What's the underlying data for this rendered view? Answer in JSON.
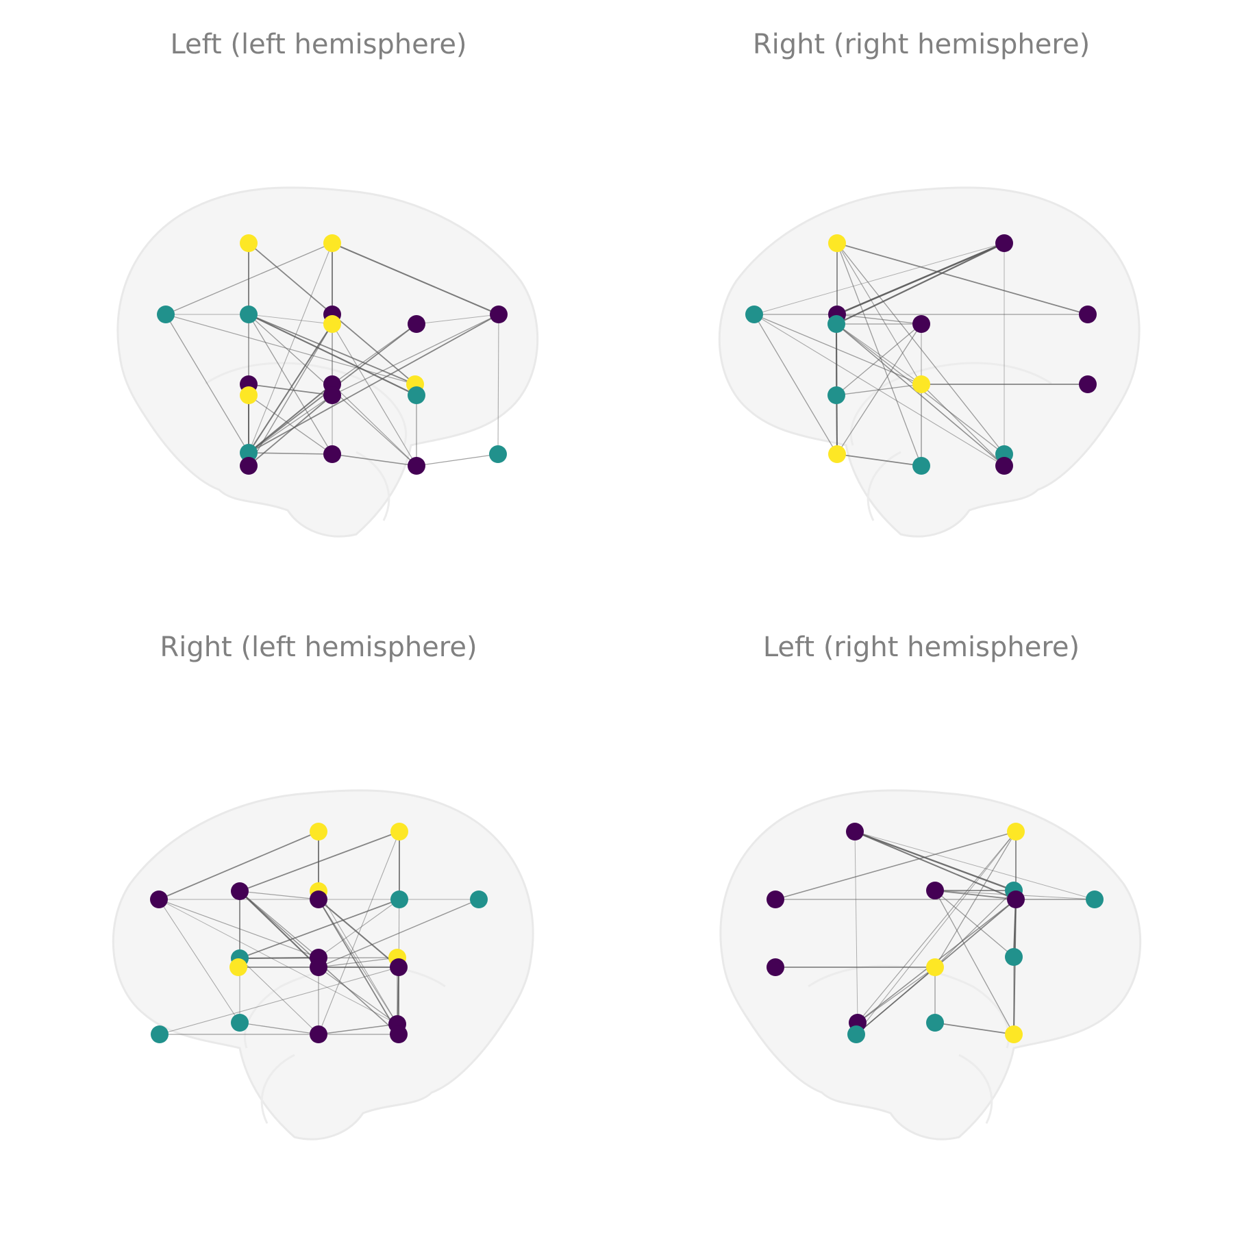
{
  "colors": {
    "purple": "#440154",
    "teal": "#21918c",
    "yellow": "#fde725",
    "edge": "#555555",
    "title": "#808080"
  },
  "panels": [
    {
      "title": "Left (left hemisphere)",
      "view": "left",
      "nodes": [
        {
          "c": "yellow"
        },
        {
          "c": "yellow"
        },
        {
          "c": "teal"
        },
        {
          "c": "teal"
        },
        {
          "c": "purple"
        },
        {
          "c": "yellow"
        },
        {
          "c": "purple"
        },
        {
          "c": "purple"
        },
        {
          "c": "purple"
        },
        {
          "c": "yellow"
        },
        {
          "c": "purple"
        },
        {
          "c": "purple"
        },
        {
          "c": "yellow"
        },
        {
          "c": "teal"
        },
        {
          "c": "teal"
        },
        {
          "c": "purple"
        },
        {
          "c": "purple"
        },
        {
          "c": "purple"
        },
        {
          "c": "teal"
        }
      ],
      "edges": [
        [
          0,
          3,
          1
        ],
        [
          0,
          12,
          1
        ],
        [
          0,
          14,
          0.4
        ],
        [
          1,
          4,
          1
        ],
        [
          1,
          7,
          1.2
        ],
        [
          1,
          14,
          0.4
        ],
        [
          1,
          2,
          0.6
        ],
        [
          1,
          10,
          0.5
        ],
        [
          2,
          3,
          0.3
        ],
        [
          2,
          14,
          0.6
        ],
        [
          3,
          13,
          1.3
        ],
        [
          3,
          12,
          1
        ],
        [
          3,
          15,
          0.6
        ],
        [
          3,
          17,
          0.6
        ],
        [
          3,
          9,
          0.6
        ],
        [
          3,
          5,
          0.3
        ],
        [
          4,
          5,
          1
        ],
        [
          5,
          14,
          1.2
        ],
        [
          5,
          16,
          0.7
        ],
        [
          5,
          17,
          0.5
        ],
        [
          6,
          14,
          1
        ],
        [
          6,
          10,
          0.6
        ],
        [
          6,
          7,
          0.3
        ],
        [
          7,
          18,
          0.4
        ],
        [
          7,
          14,
          1
        ],
        [
          7,
          11,
          0.6
        ],
        [
          8,
          9,
          1
        ],
        [
          8,
          14,
          1
        ],
        [
          8,
          11,
          1
        ],
        [
          9,
          14,
          1
        ],
        [
          9,
          15,
          0.6
        ],
        [
          10,
          14,
          1.2
        ],
        [
          10,
          17,
          0.5
        ],
        [
          11,
          16,
          1
        ],
        [
          11,
          14,
          0.6
        ],
        [
          12,
          13,
          0.5
        ],
        [
          13,
          17,
          0.6
        ],
        [
          14,
          15,
          0.8
        ],
        [
          15,
          17,
          0.8
        ],
        [
          17,
          18,
          0.6
        ],
        [
          4,
          15,
          0.4
        ],
        [
          2,
          12,
          0.5
        ]
      ]
    },
    {
      "title": "Right (right hemisphere)",
      "view": "right",
      "nodes": [
        {
          "c": "yellow"
        },
        {
          "c": "purple"
        },
        {
          "c": "teal"
        },
        {
          "c": "purple"
        },
        {
          "c": "teal"
        },
        {
          "c": "purple"
        },
        {
          "c": "purple"
        },
        {
          "c": "teal"
        },
        {
          "c": "yellow"
        },
        {
          "c": "purple"
        },
        {
          "c": "yellow"
        },
        {
          "c": "teal"
        },
        {
          "c": "teal"
        },
        {
          "c": "purple"
        }
      ],
      "edges": [
        [
          0,
          3,
          1
        ],
        [
          0,
          6,
          1
        ],
        [
          0,
          11,
          0.6
        ],
        [
          0,
          12,
          0.6
        ],
        [
          0,
          8,
          0.5
        ],
        [
          1,
          3,
          1.6
        ],
        [
          1,
          4,
          1.4
        ],
        [
          1,
          12,
          0.3
        ],
        [
          1,
          2,
          0.3
        ],
        [
          2,
          6,
          0.6
        ],
        [
          2,
          8,
          0.6
        ],
        [
          2,
          10,
          0.6
        ],
        [
          2,
          13,
          0.4
        ],
        [
          3,
          4,
          1
        ],
        [
          3,
          5,
          0.6
        ],
        [
          4,
          7,
          1
        ],
        [
          4,
          10,
          1.2
        ],
        [
          4,
          13,
          0.8
        ],
        [
          4,
          12,
          0.6
        ],
        [
          4,
          5,
          0.6
        ],
        [
          5,
          7,
          0.6
        ],
        [
          5,
          10,
          0.6
        ],
        [
          5,
          11,
          0.4
        ],
        [
          7,
          8,
          0.6
        ],
        [
          7,
          10,
          0.8
        ],
        [
          8,
          9,
          1
        ],
        [
          8,
          11,
          0.4
        ],
        [
          8,
          13,
          0.6
        ],
        [
          10,
          11,
          1
        ],
        [
          4,
          8,
          0.5
        ]
      ]
    },
    {
      "title": "Right (left hemisphere)",
      "view": "right",
      "nodes": [
        {
          "c": "yellow"
        },
        {
          "c": "yellow"
        },
        {
          "c": "purple"
        },
        {
          "c": "purple"
        },
        {
          "c": "yellow"
        },
        {
          "c": "purple"
        },
        {
          "c": "teal"
        },
        {
          "c": "teal"
        },
        {
          "c": "teal"
        },
        {
          "c": "purple"
        },
        {
          "c": "yellow"
        },
        {
          "c": "yellow"
        },
        {
          "c": "purple"
        },
        {
          "c": "purple"
        },
        {
          "c": "teal"
        },
        {
          "c": "purple"
        },
        {
          "c": "purple"
        },
        {
          "c": "purple"
        },
        {
          "c": "teal"
        }
      ],
      "edges": [
        [
          0,
          2,
          1
        ],
        [
          0,
          4,
          1
        ],
        [
          0,
          5,
          0.6
        ],
        [
          1,
          3,
          1
        ],
        [
          1,
          6,
          1
        ],
        [
          1,
          15,
          0.4
        ],
        [
          1,
          17,
          0.4
        ],
        [
          2,
          7,
          0.3
        ],
        [
          2,
          9,
          0.5
        ],
        [
          2,
          14,
          0.4
        ],
        [
          3,
          5,
          0.5
        ],
        [
          3,
          8,
          1
        ],
        [
          3,
          12,
          1.3
        ],
        [
          3,
          17,
          0.8
        ],
        [
          3,
          9,
          0.6
        ],
        [
          4,
          5,
          1
        ],
        [
          5,
          13,
          1.2
        ],
        [
          5,
          17,
          1
        ],
        [
          5,
          16,
          0.5
        ],
        [
          6,
          8,
          1
        ],
        [
          6,
          9,
          0.4
        ],
        [
          7,
          12,
          0.7
        ],
        [
          8,
          9,
          1.2
        ],
        [
          8,
          11,
          0.6
        ],
        [
          8,
          14,
          0.4
        ],
        [
          8,
          15,
          0.4
        ],
        [
          9,
          15,
          0.5
        ],
        [
          10,
          12,
          0.8
        ],
        [
          11,
          12,
          0.6
        ],
        [
          11,
          16,
          0.6
        ],
        [
          12,
          13,
          1
        ],
        [
          12,
          16,
          0.6
        ],
        [
          13,
          17,
          1
        ],
        [
          13,
          16,
          0.8
        ],
        [
          14,
          15,
          0.6
        ],
        [
          15,
          16,
          0.8
        ],
        [
          16,
          17,
          0.6
        ],
        [
          17,
          18,
          0.6
        ],
        [
          13,
          18,
          0.4
        ],
        [
          4,
          16,
          0.4
        ],
        [
          2,
          16,
          0.3
        ],
        [
          10,
          13,
          0.6
        ]
      ]
    },
    {
      "title": "Left (right hemisphere)",
      "view": "left",
      "nodes": [
        {
          "c": "purple"
        },
        {
          "c": "yellow"
        },
        {
          "c": "purple"
        },
        {
          "c": "purple"
        },
        {
          "c": "teal"
        },
        {
          "c": "purple"
        },
        {
          "c": "teal"
        },
        {
          "c": "purple"
        },
        {
          "c": "yellow"
        },
        {
          "c": "teal"
        },
        {
          "c": "purple"
        },
        {
          "c": "teal"
        },
        {
          "c": "teal"
        },
        {
          "c": "yellow"
        }
      ],
      "edges": [
        [
          0,
          4,
          1.4
        ],
        [
          0,
          5,
          1.2
        ],
        [
          0,
          10,
          0.3
        ],
        [
          0,
          6,
          0.3
        ],
        [
          1,
          2,
          0.8
        ],
        [
          1,
          5,
          1
        ],
        [
          1,
          8,
          0.6
        ],
        [
          1,
          10,
          0.5
        ],
        [
          1,
          11,
          0.4
        ],
        [
          2,
          5,
          0.3
        ],
        [
          2,
          6,
          0.3
        ],
        [
          3,
          4,
          1
        ],
        [
          3,
          5,
          1
        ],
        [
          3,
          9,
          0.6
        ],
        [
          3,
          13,
          0.6
        ],
        [
          4,
          5,
          0.8
        ],
        [
          4,
          8,
          0.6
        ],
        [
          5,
          6,
          0.6
        ],
        [
          5,
          9,
          1.4
        ],
        [
          5,
          13,
          1.2
        ],
        [
          5,
          10,
          0.8
        ],
        [
          5,
          11,
          1
        ],
        [
          7,
          8,
          1
        ],
        [
          8,
          10,
          0.6
        ],
        [
          8,
          11,
          0.6
        ],
        [
          8,
          12,
          0.6
        ],
        [
          12,
          13,
          1
        ],
        [
          9,
          13,
          0.5
        ],
        [
          3,
          6,
          0.4
        ]
      ]
    }
  ]
}
